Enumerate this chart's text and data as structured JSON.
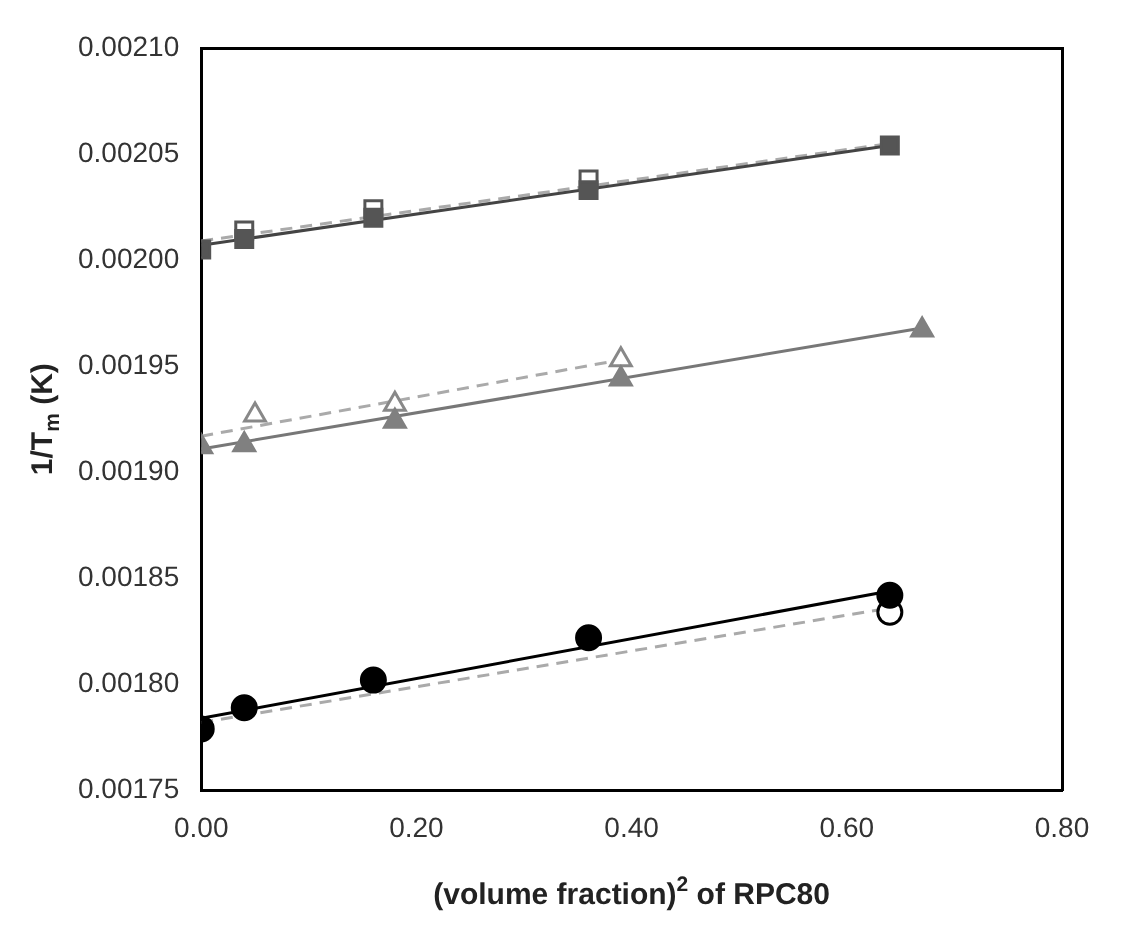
{
  "chart_data": {
    "type": "scatter",
    "xlabel": "(volume fraction)$^{2}$ of RPC80",
    "ylabel": "1/T$_{m}$ (K)",
    "xlim": [
      0,
      0.8
    ],
    "xticks": [
      {
        "value": 0,
        "label": "0.00"
      },
      {
        "value": 0.2,
        "label": "0.20"
      },
      {
        "value": 0.4,
        "label": "0.40"
      },
      {
        "value": 0.6,
        "label": "0.60"
      },
      {
        "value": 0.8,
        "label": "0.80"
      }
    ],
    "ylim": [
      0.00175,
      0.0021
    ],
    "yticks": [
      {
        "value": 0.00175,
        "label": "0.00175"
      },
      {
        "value": 0.0018,
        "label": "0.00180"
      },
      {
        "value": 0.00185,
        "label": "0.00185"
      },
      {
        "value": 0.0019,
        "label": "0.00190"
      },
      {
        "value": 0.00195,
        "label": "0.00195"
      },
      {
        "value": 0.002,
        "label": "0.00200"
      },
      {
        "value": 0.00205,
        "label": "0.00205"
      },
      {
        "value": 0.0021,
        "label": "0.00210"
      }
    ],
    "grid": false,
    "legend": false,
    "series": [
      {
        "type": "line",
        "color": "#aaaaaa",
        "line_style": "dashed",
        "marker": "none",
        "x": [
          0,
          0.64
        ],
        "values": [
          0.002009,
          0.002055
        ]
      },
      {
        "type": "line",
        "color": "#aaaaaa",
        "line_style": "dashed",
        "marker": "none",
        "x": [
          0,
          0.39
        ],
        "values": [
          0.001917,
          0.001953
        ]
      },
      {
        "type": "line",
        "color": "#aaaaaa",
        "line_style": "dashed",
        "marker": "none",
        "x": [
          0,
          0.64
        ],
        "values": [
          0.001782,
          0.001836
        ]
      },
      {
        "type": "line",
        "color": "#444444",
        "line_style": "solid",
        "marker": "none",
        "x": [
          0,
          0.64
        ],
        "values": [
          0.002007,
          0.002054
        ]
      },
      {
        "type": "line",
        "color": "#777777",
        "line_style": "solid",
        "marker": "none",
        "x": [
          0,
          0.67
        ],
        "values": [
          0.001911,
          0.001968
        ]
      },
      {
        "type": "line",
        "color": "#000000",
        "line_style": "solid",
        "marker": "none",
        "x": [
          0,
          0.64
        ],
        "values": [
          0.001784,
          0.001844
        ]
      },
      {
        "type": "scatter",
        "color": "#555555",
        "marker": "square",
        "colors": [
          "#ffffff",
          "#ffffff",
          "#ffffff"
        ],
        "x": [
          0.04,
          0.16,
          0.36
        ],
        "values": [
          0.002014,
          0.002024,
          0.002038
        ]
      },
      {
        "type": "scatter",
        "color": "#888888",
        "marker": "triangle",
        "colors": [
          "#ffffff",
          "#ffffff",
          "#ffffff"
        ],
        "x": [
          0.05,
          0.18,
          0.39
        ],
        "values": [
          0.001927,
          0.001932,
          0.001953
        ]
      },
      {
        "type": "scatter",
        "color": "#000000",
        "marker": "circle",
        "colors": [
          "#ffffff"
        ],
        "x": [
          0.64
        ],
        "values": [
          0.001834
        ]
      },
      {
        "type": "scatter",
        "color": "#555555",
        "marker": "square",
        "x": [
          0,
          0.04,
          0.16,
          0.36,
          0.64
        ],
        "values": [
          0.002005,
          0.00201,
          0.00202,
          0.002033,
          0.002054
        ]
      },
      {
        "type": "scatter",
        "color": "#808080",
        "marker": "triangle",
        "x": [
          0,
          0.04,
          0.18,
          0.39,
          0.67
        ],
        "values": [
          0.001912,
          0.001913,
          0.001924,
          0.001944,
          0.001967
        ]
      },
      {
        "type": "scatter",
        "color": "#000000",
        "marker": "circle",
        "x": [
          0,
          0.04,
          0.16,
          0.36,
          0.64
        ],
        "values": [
          0.001779,
          0.001789,
          0.001802,
          0.001822,
          0.001842
        ]
      }
    ]
  }
}
